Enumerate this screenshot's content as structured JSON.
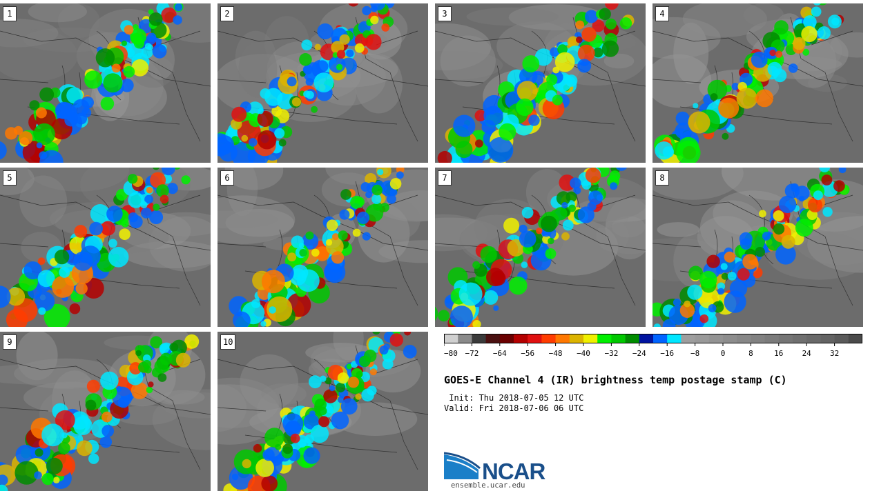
{
  "panels": [
    {
      "label": "1"
    },
    {
      "label": "2"
    },
    {
      "label": "3"
    },
    {
      "label": "4"
    },
    {
      "label": "5"
    },
    {
      "label": "6"
    },
    {
      "label": "7"
    },
    {
      "label": "8"
    },
    {
      "label": "9"
    },
    {
      "label": "10"
    }
  ],
  "colorbar": {
    "tick_labels": [
      "−80",
      "−72",
      "−64",
      "−56",
      "−48",
      "−40",
      "−32",
      "−24",
      "−16",
      "−8",
      "0",
      "8",
      "16",
      "24",
      "32"
    ],
    "colors": [
      "#d0d0d0",
      "#8a8a8a",
      "#3a3a3a",
      "#4a1010",
      "#6a0000",
      "#b40000",
      "#e01010",
      "#ff3c00",
      "#ff7800",
      "#dcb400",
      "#f0f000",
      "#00f000",
      "#00c800",
      "#008c00",
      "#0014a0",
      "#0064ff",
      "#00e6ff",
      "#9e9e9e",
      "#999999",
      "#939393",
      "#8d8d8d",
      "#878787",
      "#818181",
      "#7b7b7b",
      "#757575",
      "#6f6f6f",
      "#696969",
      "#636363",
      "#5a5a5a",
      "#4a4a4a"
    ]
  },
  "title": "GOES-E Channel 4 (IR) brightness temp postage stamp (C)",
  "init": " Init: Thu 2018-07-05 12 UTC",
  "valid": "Valid: Fri 2018-07-06 06 UTC",
  "logo": {
    "text": "NCAR",
    "url": "ensemble.ucar.edu",
    "color": "#1a66a8"
  }
}
